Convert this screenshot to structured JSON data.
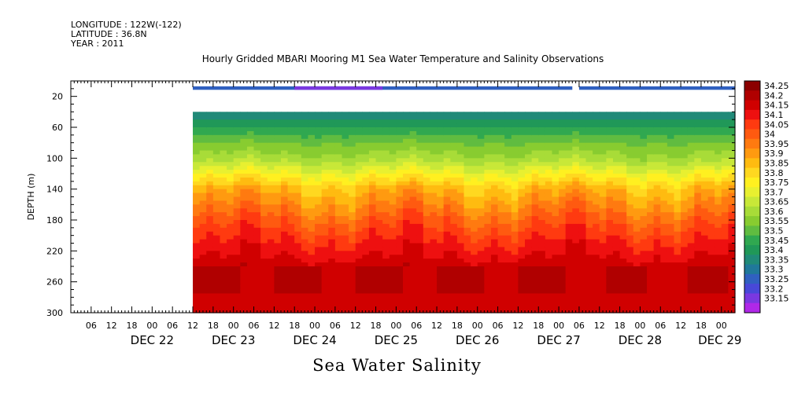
{
  "meta_lines": {
    "longitude": "LONGITUDE : 122W(-122)",
    "latitude": "LATITUDE : 36.8N",
    "year": "YEAR : 2011"
  },
  "chart_data": {
    "type": "heatmap",
    "title": "Hourly Gridded MBARI Mooring M1 Sea Water Temperature and Salinity Observations",
    "subtitle": "Sea Water Salinity",
    "ylabel": "DEPTH (m)",
    "xlabel": "",
    "x_range_hours": "2011-12-21 00:00 to 2011-12-29 04:00 (hourly)",
    "y_range_depth_m": [
      0,
      300
    ],
    "y_ticks": [
      20,
      60,
      100,
      140,
      180,
      220,
      260,
      300
    ],
    "x_hour_ticks": [
      "06",
      "12",
      "18",
      "00",
      "06",
      "12",
      "18",
      "00",
      "06",
      "12",
      "18",
      "00",
      "06",
      "12",
      "18",
      "00",
      "06",
      "12",
      "18",
      "00",
      "06",
      "12",
      "18",
      "00",
      "06",
      "12",
      "18",
      "00",
      "06",
      "12",
      "18",
      "00"
    ],
    "x_day_labels": [
      {
        "label": "DEC 22",
        "date": "2011-12-22"
      },
      {
        "label": "DEC 23",
        "date": "2011-12-23"
      },
      {
        "label": "DEC 24",
        "date": "2011-12-24"
      },
      {
        "label": "DEC 25",
        "date": "2011-12-25"
      },
      {
        "label": "DEC 26",
        "date": "2011-12-26"
      },
      {
        "label": "DEC 27",
        "date": "2011-12-27"
      },
      {
        "label": "DEC 28",
        "date": "2011-12-28"
      },
      {
        "label": "DEC 29",
        "date": "2011-12-29"
      }
    ],
    "data_start": "2011-12-22 12:00",
    "surface_band": {
      "depth_m": 10,
      "value_approx": 33.3,
      "gap": "2011-12-27 04:00 to 2011-12-27 06:00"
    },
    "no_data_depth_range_m": [
      12,
      38
    ],
    "profile_start_depth_m": 40,
    "approximate_mean_profile": [
      {
        "depth": 40,
        "salinity": 33.35
      },
      {
        "depth": 60,
        "salinity": 33.45
      },
      {
        "depth": 80,
        "salinity": 33.55
      },
      {
        "depth": 100,
        "salinity": 33.62
      },
      {
        "depth": 120,
        "salinity": 33.75
      },
      {
        "depth": 140,
        "salinity": 33.88
      },
      {
        "depth": 160,
        "salinity": 33.95
      },
      {
        "depth": 180,
        "salinity": 34.02
      },
      {
        "depth": 200,
        "salinity": 34.08
      },
      {
        "depth": 220,
        "salinity": 34.13
      },
      {
        "depth": 240,
        "salinity": 34.18
      },
      {
        "depth": 260,
        "salinity": 34.22
      },
      {
        "depth": 280,
        "salinity": 34.18
      },
      {
        "depth": 300,
        "salinity": 34.2
      }
    ],
    "colorbar": {
      "labels": [
        "34.25",
        "34.2",
        "34.15",
        "34.1",
        "34.05",
        "34",
        "33.95",
        "33.9",
        "33.85",
        "33.8",
        "33.75",
        "33.7",
        "33.65",
        "33.6",
        "33.55",
        "33.5",
        "33.45",
        "33.4",
        "33.35",
        "33.3",
        "33.25",
        "33.2",
        "33.15"
      ],
      "colors": [
        "#8b0000",
        "#b00000",
        "#d00000",
        "#ee1010",
        "#ff3a10",
        "#ff5a10",
        "#ff7a10",
        "#ff9a10",
        "#ffbb10",
        "#ffd820",
        "#fff020",
        "#e8f030",
        "#c8e838",
        "#a8dc38",
        "#88cc30",
        "#60bc40",
        "#30a850",
        "#209858",
        "#208a78",
        "#20789a",
        "#3060c0",
        "#4848d8",
        "#7a38e0",
        "#b028e8"
      ]
    }
  }
}
